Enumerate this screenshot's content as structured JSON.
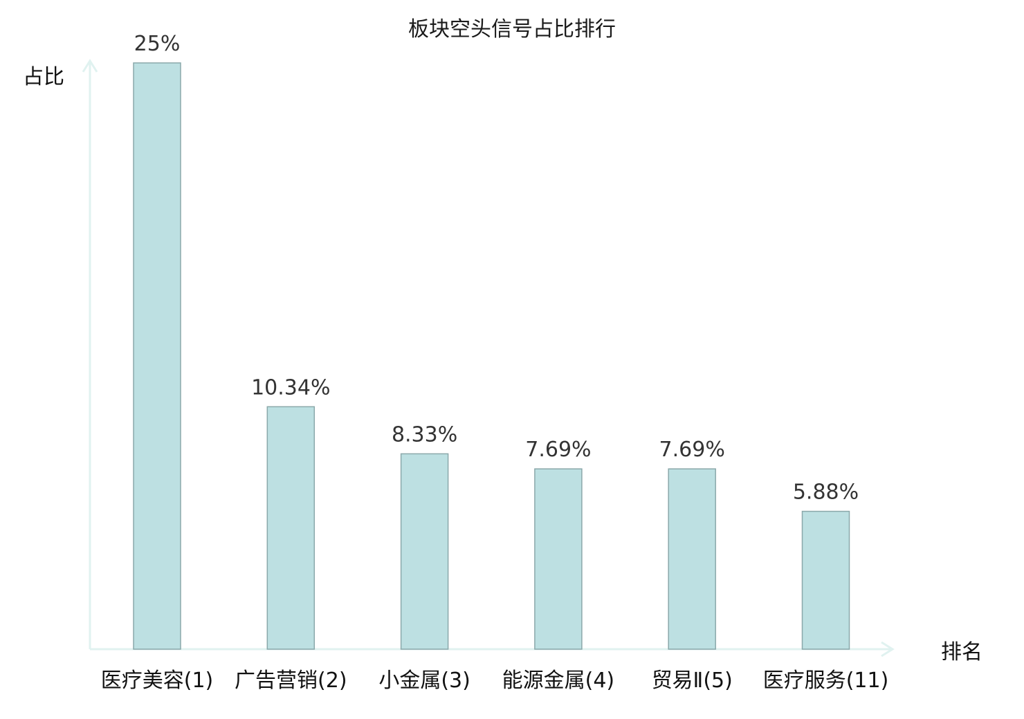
{
  "chart_data": {
    "type": "bar",
    "title": "板块空头信号占比排行",
    "ylabel": "占比",
    "xlabel": "排名",
    "categories": [
      "医疗美容(1)",
      "广告营销(2)",
      "小金属(3)",
      "能源金属(4)",
      "贸易Ⅱ(5)",
      "医疗服务(11)"
    ],
    "values": [
      25,
      10.34,
      8.33,
      7.69,
      7.69,
      5.88
    ],
    "value_labels": [
      "25%",
      "10.34%",
      "8.33%",
      "7.69%",
      "7.69%",
      "5.88%"
    ],
    "highlight_index": 5,
    "ylim": [
      0,
      25
    ],
    "grid": false,
    "legend": "none",
    "colors": {
      "bar_fill": "#bde0e2",
      "bar_stroke": "#8aa8aa",
      "axis": "#e0f2f0",
      "highlight_label": "#e0201e",
      "label": "#111111",
      "value_label": "#333333"
    }
  }
}
